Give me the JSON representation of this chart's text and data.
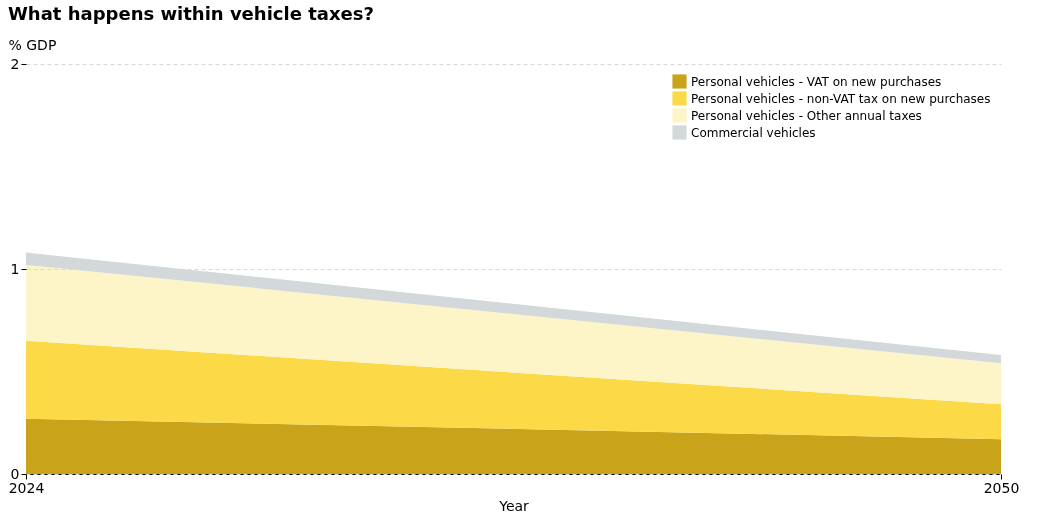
{
  "chart_data": {
    "type": "area",
    "title": "What happens within vehicle taxes?",
    "xlabel": "Year",
    "ylabel": "% GDP",
    "x": [
      2024,
      2050
    ],
    "stacked": true,
    "series": [
      {
        "name": "Personal vehicles - VAT on new purchases",
        "color": "#c9a41a",
        "values": [
          0.27,
          0.17
        ]
      },
      {
        "name": "Personal vehicles - non-VAT tax on new purchases",
        "color": "#fcd946",
        "values": [
          0.38,
          0.17
        ]
      },
      {
        "name": "Personal vehicles - Other annual taxes",
        "color": "#fdf5c8",
        "values": [
          0.37,
          0.2
        ]
      },
      {
        "name": "Commercial vehicles",
        "color": "#d3d9da",
        "values": [
          0.06,
          0.04
        ]
      }
    ],
    "xlim": [
      2024,
      2050
    ],
    "xticks": [
      2024,
      2050
    ],
    "ylim": [
      0,
      2
    ],
    "yticks": [
      0,
      1,
      2
    ],
    "grid": "y",
    "legend": "top right"
  }
}
